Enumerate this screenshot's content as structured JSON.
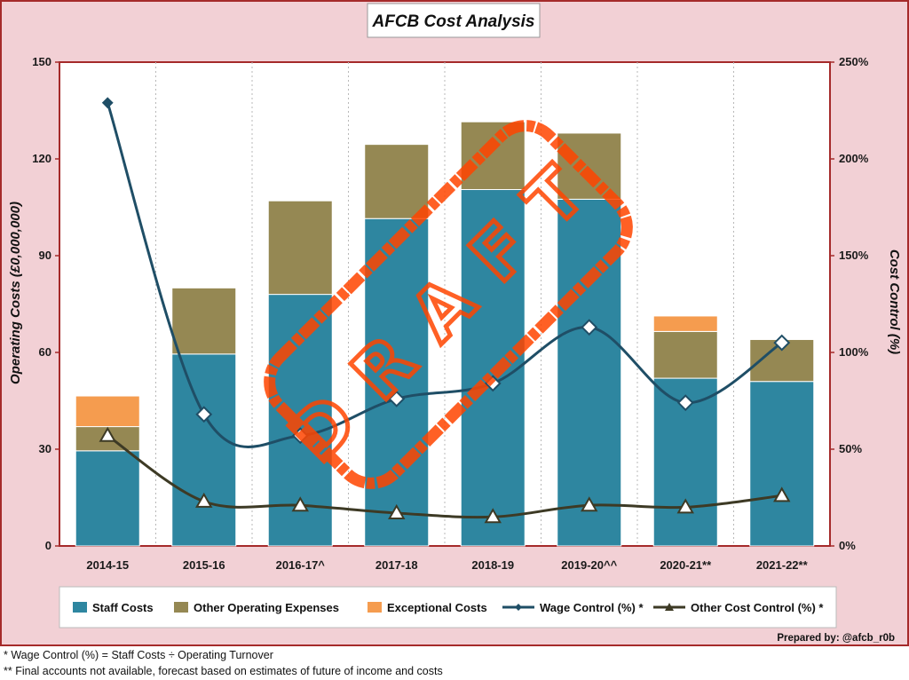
{
  "chart_data": {
    "type": "bar",
    "title": "AFCB Cost Analysis",
    "ylabel": "Operating Costs (£0,000,000)",
    "y2label": "Cost Control (%)",
    "categories": [
      "2014-15",
      "2015-16",
      "2016-17^",
      "2017-18",
      "2018-19",
      "2019-20^^",
      "2020-21**",
      "2021-22**"
    ],
    "ylim": [
      0,
      150
    ],
    "yticks": [
      "0",
      "30",
      "60",
      "90",
      "120",
      "150"
    ],
    "y2lim": [
      0,
      250
    ],
    "y2ticks": [
      "0%",
      "50%",
      "100%",
      "150%",
      "200%",
      "250%"
    ],
    "stacked": true,
    "grid": "vertical dotted",
    "legend_position": "bottom",
    "series": [
      {
        "name": "Staff Costs",
        "kind": "bar",
        "axis": "left",
        "color": "#2e86a0",
        "values": [
          29.5,
          59.5,
          78.0,
          101.5,
          110.5,
          107.5,
          52.0,
          51.0
        ]
      },
      {
        "name": "Other Operating Expenses",
        "kind": "bar",
        "axis": "left",
        "color": "#958853",
        "values": [
          7.5,
          20.5,
          29.0,
          23.0,
          21.0,
          20.5,
          14.5,
          13.0
        ]
      },
      {
        "name": "Exceptional Costs",
        "kind": "bar",
        "axis": "left",
        "color": "#f59c4f",
        "values": [
          9.5,
          0,
          0,
          0,
          0,
          0,
          4.8,
          0
        ]
      },
      {
        "name": "Wage Control (%) *",
        "kind": "line",
        "axis": "right",
        "color": "#1f4e66",
        "marker": "diamond",
        "values": [
          229,
          68,
          57,
          76,
          84,
          113,
          74,
          105
        ]
      },
      {
        "name": "Other Cost Control (%) *",
        "kind": "line",
        "axis": "right",
        "color": "#3d3a25",
        "marker": "triangle",
        "values": [
          57,
          23,
          21,
          17,
          15,
          21,
          20,
          26
        ]
      }
    ],
    "annotations": {
      "stamp": "DRAFT",
      "credit": "Prepared by: @afcb_r0b"
    }
  },
  "footnotes": [
    "* Wage Control (%) = Staff Costs ÷ Operating Turnover",
    "** Final accounts not available, forecast based on estimates of future of income and costs"
  ],
  "colors": {
    "background": "#f2d0d5",
    "frame": "#a52a2a",
    "stamp": "#ff4500"
  }
}
